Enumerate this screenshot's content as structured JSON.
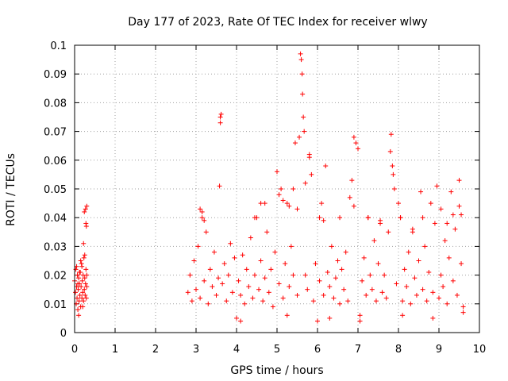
{
  "chart_data": {
    "type": "scatter",
    "title": "Day 177 of 2023, Rate Of TEC Index for receiver wlwy",
    "xlabel": "GPS time / hours",
    "ylabel": "ROTI / TECUs",
    "xlim": [
      0,
      10
    ],
    "ylim": [
      0,
      0.1
    ],
    "x_ticks": [
      0,
      1,
      2,
      3,
      4,
      5,
      6,
      7,
      8,
      9,
      10
    ],
    "y_ticks": [
      0,
      0.01,
      0.02,
      0.03,
      0.04,
      0.05,
      0.06,
      0.07,
      0.08,
      0.09,
      0.1
    ],
    "x_tick_labels": [
      "0",
      "1",
      "2",
      "3",
      "4",
      "5",
      "6",
      "7",
      "8",
      "9",
      "10"
    ],
    "y_tick_labels": [
      "0",
      "0.01",
      "0.02",
      "0.03",
      "0.04",
      "0.05",
      "0.06",
      "0.07",
      "0.08",
      "0.09",
      "0.1"
    ],
    "grid": true,
    "marker": "+",
    "color": "#ff0000",
    "series": [
      {
        "name": "ROTI",
        "points": [
          [
            0.0,
            0.018
          ],
          [
            0.02,
            0.014
          ],
          [
            0.03,
            0.022
          ],
          [
            0.04,
            0.01
          ],
          [
            0.05,
            0.016
          ],
          [
            0.06,
            0.012
          ],
          [
            0.07,
            0.02
          ],
          [
            0.08,
            0.008
          ],
          [
            0.09,
            0.015
          ],
          [
            0.1,
            0.019
          ],
          [
            0.11,
            0.011
          ],
          [
            0.12,
            0.017
          ],
          [
            0.13,
            0.013
          ],
          [
            0.14,
            0.021
          ],
          [
            0.15,
            0.009
          ],
          [
            0.16,
            0.016
          ],
          [
            0.17,
            0.024
          ],
          [
            0.18,
            0.012
          ],
          [
            0.19,
            0.018
          ],
          [
            0.2,
            0.014
          ],
          [
            0.21,
            0.02
          ],
          [
            0.22,
            0.011
          ],
          [
            0.23,
            0.026
          ],
          [
            0.24,
            0.015
          ],
          [
            0.25,
            0.019
          ],
          [
            0.26,
            0.013
          ],
          [
            0.27,
            0.017
          ],
          [
            0.28,
            0.022
          ],
          [
            0.29,
            0.012
          ],
          [
            0.3,
            0.016
          ],
          [
            0.05,
            0.023
          ],
          [
            0.1,
            0.006
          ],
          [
            0.15,
            0.025
          ],
          [
            0.2,
            0.009
          ],
          [
            0.25,
            0.027
          ],
          [
            0.3,
            0.02
          ],
          [
            0.22,
            0.031
          ],
          [
            0.24,
            0.042
          ],
          [
            0.27,
            0.043
          ],
          [
            0.3,
            0.044
          ],
          [
            0.28,
            0.038
          ],
          [
            0.29,
            0.037
          ],
          [
            0.12,
            0.021
          ],
          [
            0.18,
            0.023
          ],
          [
            0.08,
            0.017
          ],
          [
            2.8,
            0.014
          ],
          [
            2.85,
            0.02
          ],
          [
            2.9,
            0.011
          ],
          [
            2.95,
            0.025
          ],
          [
            3.0,
            0.015
          ],
          [
            3.05,
            0.03
          ],
          [
            3.1,
            0.012
          ],
          [
            3.15,
            0.042
          ],
          [
            3.2,
            0.018
          ],
          [
            3.25,
            0.035
          ],
          [
            3.3,
            0.01
          ],
          [
            3.35,
            0.022
          ],
          [
            3.4,
            0.016
          ],
          [
            3.45,
            0.028
          ],
          [
            3.5,
            0.013
          ],
          [
            3.55,
            0.019
          ],
          [
            3.6,
            0.075
          ],
          [
            3.62,
            0.076
          ],
          [
            3.6,
            0.073
          ],
          [
            3.58,
            0.051
          ],
          [
            3.65,
            0.017
          ],
          [
            3.7,
            0.024
          ],
          [
            3.75,
            0.011
          ],
          [
            3.8,
            0.02
          ],
          [
            3.85,
            0.031
          ],
          [
            3.9,
            0.014
          ],
          [
            3.95,
            0.026
          ],
          [
            4.0,
            0.005
          ],
          [
            4.05,
            0.018
          ],
          [
            4.1,
            0.013
          ],
          [
            4.15,
            0.027
          ],
          [
            4.2,
            0.01
          ],
          [
            4.25,
            0.022
          ],
          [
            4.3,
            0.016
          ],
          [
            4.35,
            0.033
          ],
          [
            4.4,
            0.012
          ],
          [
            4.45,
            0.02
          ],
          [
            4.5,
            0.04
          ],
          [
            4.55,
            0.015
          ],
          [
            4.6,
            0.025
          ],
          [
            4.65,
            0.011
          ],
          [
            4.7,
            0.019
          ],
          [
            4.75,
            0.035
          ],
          [
            4.8,
            0.014
          ],
          [
            4.85,
            0.022
          ],
          [
            4.9,
            0.009
          ],
          [
            4.95,
            0.028
          ],
          [
            5.0,
            0.056
          ],
          [
            5.05,
            0.017
          ],
          [
            5.1,
            0.05
          ],
          [
            5.15,
            0.012
          ],
          [
            5.2,
            0.024
          ],
          [
            5.25,
            0.045
          ],
          [
            5.3,
            0.016
          ],
          [
            5.35,
            0.03
          ],
          [
            5.4,
            0.02
          ],
          [
            5.45,
            0.066
          ],
          [
            5.5,
            0.013
          ],
          [
            5.55,
            0.068
          ],
          [
            5.58,
            0.097
          ],
          [
            5.6,
            0.095
          ],
          [
            5.62,
            0.09
          ],
          [
            5.63,
            0.083
          ],
          [
            5.65,
            0.075
          ],
          [
            5.67,
            0.07
          ],
          [
            5.7,
            0.02
          ],
          [
            5.75,
            0.015
          ],
          [
            5.8,
            0.062
          ],
          [
            5.85,
            0.055
          ],
          [
            5.9,
            0.011
          ],
          [
            5.95,
            0.024
          ],
          [
            6.0,
            0.004
          ],
          [
            6.05,
            0.018
          ],
          [
            6.1,
            0.045
          ],
          [
            6.15,
            0.013
          ],
          [
            6.2,
            0.058
          ],
          [
            6.25,
            0.021
          ],
          [
            6.3,
            0.016
          ],
          [
            6.35,
            0.03
          ],
          [
            6.4,
            0.012
          ],
          [
            6.45,
            0.019
          ],
          [
            6.5,
            0.025
          ],
          [
            6.55,
            0.01
          ],
          [
            6.6,
            0.022
          ],
          [
            6.65,
            0.015
          ],
          [
            6.7,
            0.028
          ],
          [
            6.75,
            0.011
          ],
          [
            6.8,
            0.047
          ],
          [
            6.85,
            0.053
          ],
          [
            6.9,
            0.068
          ],
          [
            6.95,
            0.066
          ],
          [
            7.0,
            0.064
          ],
          [
            7.05,
            0.004
          ],
          [
            7.1,
            0.018
          ],
          [
            7.15,
            0.026
          ],
          [
            7.2,
            0.013
          ],
          [
            7.25,
            0.04
          ],
          [
            7.3,
            0.02
          ],
          [
            7.35,
            0.015
          ],
          [
            7.4,
            0.032
          ],
          [
            7.45,
            0.011
          ],
          [
            7.5,
            0.024
          ],
          [
            7.55,
            0.038
          ],
          [
            7.6,
            0.014
          ],
          [
            7.65,
            0.02
          ],
          [
            7.7,
            0.012
          ],
          [
            7.75,
            0.035
          ],
          [
            7.8,
            0.063
          ],
          [
            7.82,
            0.069
          ],
          [
            7.85,
            0.058
          ],
          [
            7.87,
            0.055
          ],
          [
            7.9,
            0.05
          ],
          [
            7.95,
            0.017
          ],
          [
            8.0,
            0.045
          ],
          [
            8.05,
            0.04
          ],
          [
            8.1,
            0.011
          ],
          [
            8.15,
            0.022
          ],
          [
            8.2,
            0.016
          ],
          [
            8.25,
            0.028
          ],
          [
            8.3,
            0.01
          ],
          [
            8.35,
            0.035
          ],
          [
            8.4,
            0.019
          ],
          [
            8.45,
            0.013
          ],
          [
            8.5,
            0.025
          ],
          [
            8.55,
            0.049
          ],
          [
            8.6,
            0.015
          ],
          [
            8.65,
            0.03
          ],
          [
            8.7,
            0.011
          ],
          [
            8.75,
            0.021
          ],
          [
            8.8,
            0.045
          ],
          [
            8.85,
            0.014
          ],
          [
            8.9,
            0.038
          ],
          [
            8.95,
            0.051
          ],
          [
            9.0,
            0.012
          ],
          [
            9.05,
            0.02
          ],
          [
            9.1,
            0.016
          ],
          [
            9.15,
            0.032
          ],
          [
            9.2,
            0.01
          ],
          [
            9.25,
            0.026
          ],
          [
            9.3,
            0.049
          ],
          [
            9.35,
            0.018
          ],
          [
            9.4,
            0.036
          ],
          [
            9.45,
            0.013
          ],
          [
            9.5,
            0.053
          ],
          [
            9.55,
            0.024
          ],
          [
            9.6,
            0.009
          ],
          [
            3.1,
            0.043
          ],
          [
            3.15,
            0.04
          ],
          [
            3.2,
            0.039
          ],
          [
            4.45,
            0.04
          ],
          [
            4.6,
            0.045
          ],
          [
            4.7,
            0.045
          ],
          [
            5.05,
            0.048
          ],
          [
            5.15,
            0.046
          ],
          [
            5.3,
            0.044
          ],
          [
            5.4,
            0.05
          ],
          [
            5.5,
            0.043
          ],
          [
            5.7,
            0.052
          ],
          [
            5.8,
            0.061
          ],
          [
            6.05,
            0.04
          ],
          [
            6.15,
            0.039
          ],
          [
            6.55,
            0.04
          ],
          [
            6.9,
            0.044
          ],
          [
            7.25,
            0.04
          ],
          [
            7.55,
            0.039
          ],
          [
            8.05,
            0.04
          ],
          [
            8.35,
            0.036
          ],
          [
            8.6,
            0.04
          ],
          [
            9.05,
            0.043
          ],
          [
            9.2,
            0.038
          ],
          [
            9.35,
            0.041
          ],
          [
            9.5,
            0.044
          ],
          [
            9.55,
            0.041
          ],
          [
            4.1,
            0.004
          ],
          [
            5.25,
            0.006
          ],
          [
            6.3,
            0.005
          ],
          [
            7.05,
            0.006
          ],
          [
            8.1,
            0.006
          ],
          [
            8.85,
            0.005
          ],
          [
            9.6,
            0.007
          ]
        ]
      }
    ]
  }
}
